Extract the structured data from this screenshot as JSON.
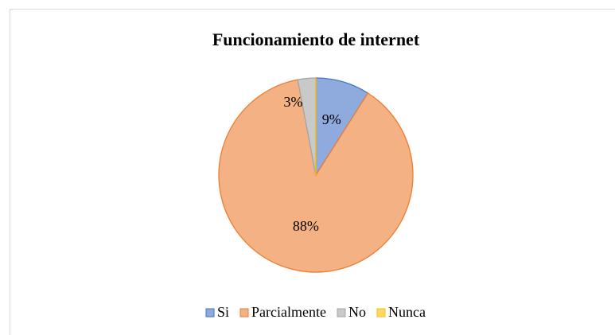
{
  "chart_data": {
    "type": "pie",
    "title": "Funcionamiento de internet",
    "categories": [
      "Si",
      "Parcialmente",
      "No",
      "Nunca"
    ],
    "values": [
      9,
      88,
      3,
      0
    ],
    "value_labels": [
      "9%",
      "88%",
      "3%",
      null
    ],
    "colors": [
      "#8faadc",
      "#f4b183",
      "#c9c9c9",
      "#ffd966"
    ],
    "edge_colors": [
      "#4472c4",
      "#ed7d31",
      "#a5a5a5",
      "#ffc000"
    ],
    "legend": "bottom"
  }
}
